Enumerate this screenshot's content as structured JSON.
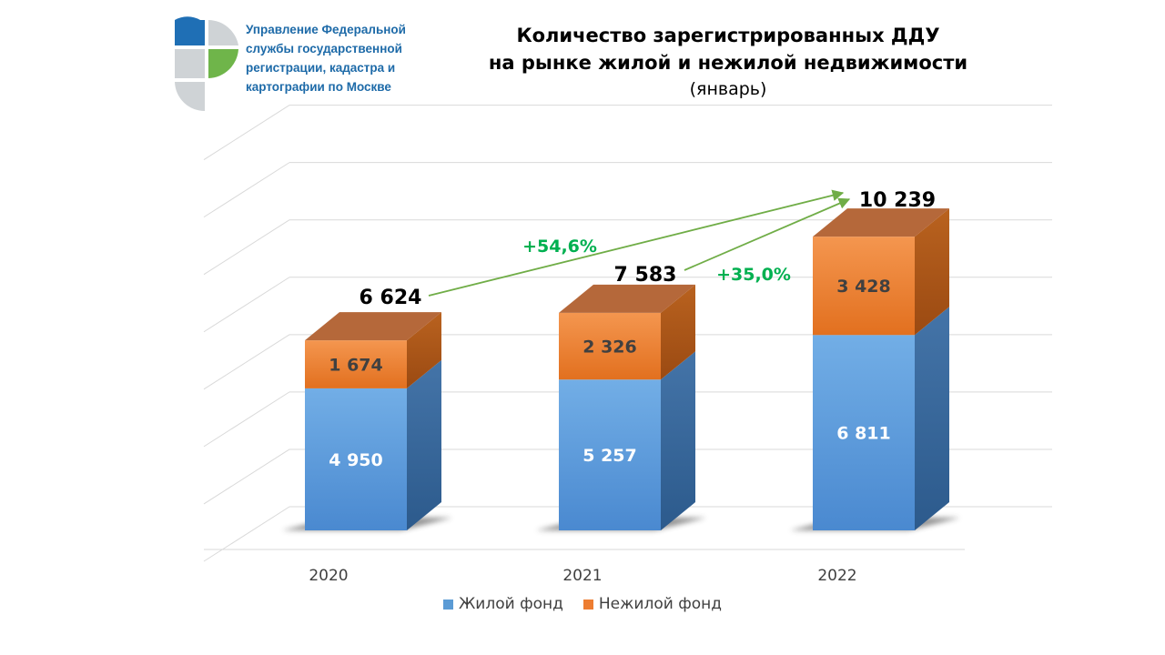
{
  "organization": {
    "lines": [
      "Управление Федеральной",
      "службы государственной",
      "регистрации, кадастра и",
      "картографии по Москве"
    ]
  },
  "colors": {
    "residential": "#5b9bd5",
    "nonresidential": "#ed7d31",
    "growth": "#00b050",
    "arrow": "#70ad47",
    "org_text": "#1d6aa8"
  },
  "chart_data": {
    "type": "bar",
    "stacked": true,
    "three_d": true,
    "title": "Количество зарегистрированных ДДУ\nна рынке жилой и нежилой недвижимости",
    "subtitle": "(январь)",
    "categories": [
      "2020",
      "2021",
      "2022"
    ],
    "series": [
      {
        "name": "Жилой фонд",
        "values": [
          4950,
          5257,
          6811
        ],
        "labels": [
          "4 950",
          "5 257",
          "6 811"
        ]
      },
      {
        "name": "Нежилой фонд",
        "values": [
          1674,
          2326,
          3428
        ],
        "labels": [
          "1 674",
          "2 326",
          "3 428"
        ]
      }
    ],
    "totals": [
      6624,
      7583,
      10239
    ],
    "total_labels": [
      "6 624",
      "7 583",
      "10 239"
    ],
    "annotations": [
      {
        "text": "+54,6%",
        "from": "2020",
        "to": "2022"
      },
      {
        "text": "+35,0%",
        "from": "2021",
        "to": "2022"
      }
    ],
    "ylim": [
      0,
      14000
    ],
    "grid": true,
    "legend": "bottom"
  }
}
